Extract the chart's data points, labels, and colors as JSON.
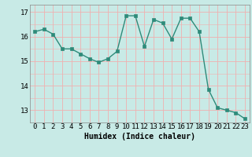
{
  "x": [
    0,
    1,
    2,
    3,
    4,
    5,
    6,
    7,
    8,
    9,
    10,
    11,
    12,
    13,
    14,
    15,
    16,
    17,
    18,
    19,
    20,
    21,
    22,
    23
  ],
  "y": [
    16.2,
    16.3,
    16.1,
    15.5,
    15.5,
    15.3,
    15.1,
    14.95,
    15.1,
    15.4,
    16.85,
    16.85,
    15.6,
    16.7,
    16.55,
    15.9,
    16.75,
    16.75,
    16.2,
    13.85,
    13.1,
    13.0,
    12.9,
    12.65
  ],
  "line_color": "#2e8b7a",
  "marker": "s",
  "markersize": 2.5,
  "linewidth": 1.0,
  "bg_color": "#c8eae6",
  "grid_color_major": "#f0b0b0",
  "grid_color_minor": "#f0b0b0",
  "xlabel": "Humidex (Indice chaleur)",
  "ylim": [
    12.5,
    17.3
  ],
  "xlim": [
    -0.5,
    23.5
  ],
  "yticks": [
    13,
    14,
    15,
    16,
    17
  ],
  "xticks": [
    0,
    1,
    2,
    3,
    4,
    5,
    6,
    7,
    8,
    9,
    10,
    11,
    12,
    13,
    14,
    15,
    16,
    17,
    18,
    19,
    20,
    21,
    22,
    23
  ],
  "xlabel_fontsize": 7,
  "tick_fontsize": 6.5
}
